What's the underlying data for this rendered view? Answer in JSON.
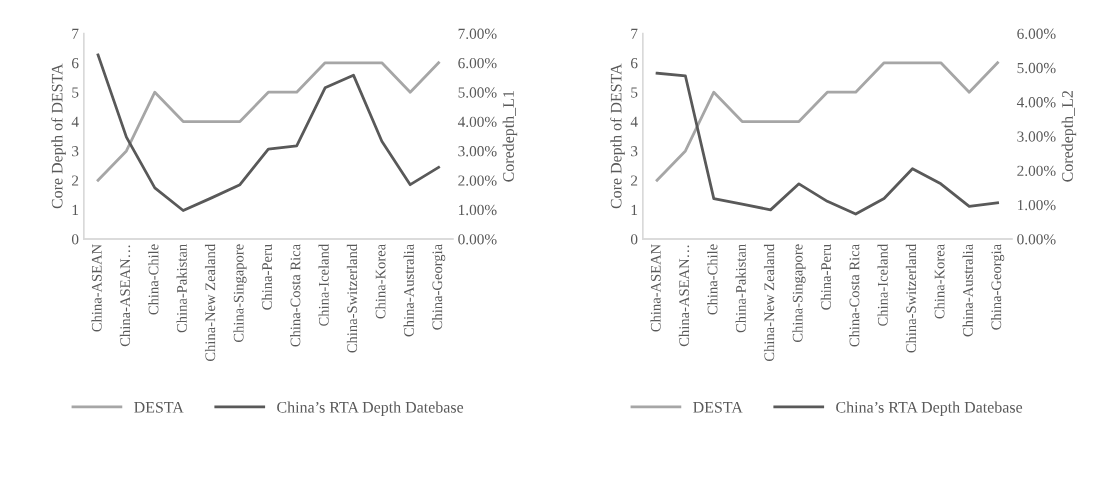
{
  "chart_data": [
    {
      "type": "line",
      "categories": [
        "China-ASEAN",
        "China-ASEAN…",
        "China-Chile",
        "China-Pakistan",
        "China-New Zealand",
        "China-Singapore",
        "China-Peru",
        "China-Costa Rica",
        "China-Iceland",
        "China-Switzerland",
        "China-Korea",
        "China-Australia",
        "China-Georgia"
      ],
      "ylabel": "Core Depth of DESTA",
      "y2label": "Coredepth_L1",
      "ylim": [
        0,
        7
      ],
      "yticks": [
        0,
        1,
        2,
        3,
        4,
        5,
        6,
        7
      ],
      "y2lim": [
        0,
        7
      ],
      "y2ticks": [
        {
          "value": 0,
          "label": "0.00%"
        },
        {
          "value": 1,
          "label": "1.00%"
        },
        {
          "value": 2,
          "label": "2.00%"
        },
        {
          "value": 3,
          "label": "3.00%"
        },
        {
          "value": 4,
          "label": "4.00%"
        },
        {
          "value": 5,
          "label": "5.00%"
        },
        {
          "value": 6,
          "label": "6.00%"
        },
        {
          "value": 7,
          "label": "7.00%"
        }
      ],
      "legend": "bottom",
      "grid": false,
      "series": [
        {
          "name": "DESTA",
          "color": "#a6a6a6",
          "values": [
            2,
            3,
            5,
            4,
            4,
            4,
            5,
            5,
            6,
            6,
            6,
            5,
            6
          ]
        },
        {
          "name": "China’s RTA Depth Datebase",
          "color": "#595959",
          "axis": "y2",
          "values": [
            6.27,
            3.47,
            1.74,
            0.97,
            1.4,
            1.85,
            3.06,
            3.17,
            5.15,
            5.58,
            3.33,
            1.85,
            2.44
          ]
        }
      ]
    },
    {
      "type": "line",
      "categories": [
        "China-ASEAN",
        "China-ASEAN…",
        "China-Chile",
        "China-Pakistan",
        "China-New Zealand",
        "China-Singapore",
        "China-Peru",
        "China-Costa Rica",
        "China-Iceland",
        "China-Switzerland",
        "China-Korea",
        "China-Australia",
        "China-Georgia"
      ],
      "ylabel": "Core Depth of DESTA",
      "y2label": "Coredepth_L2",
      "ylim": [
        0,
        7
      ],
      "yticks": [
        0,
        1,
        2,
        3,
        4,
        5,
        6,
        7
      ],
      "y2lim": [
        0,
        6
      ],
      "y2ticks": [
        {
          "value": 0,
          "label": "0.00%"
        },
        {
          "value": 1,
          "label": "1.00%"
        },
        {
          "value": 2,
          "label": "2.00%"
        },
        {
          "value": 3,
          "label": "3.00%"
        },
        {
          "value": 4,
          "label": "4.00%"
        },
        {
          "value": 5,
          "label": "5.00%"
        },
        {
          "value": 6,
          "label": "6.00%"
        }
      ],
      "legend": "bottom",
      "grid": false,
      "series": [
        {
          "name": "DESTA",
          "color": "#a6a6a6",
          "values": [
            2,
            3,
            5,
            4,
            4,
            4,
            5,
            5,
            6,
            6,
            6,
            5,
            6
          ]
        },
        {
          "name": "China’s RTA Depth Datebase",
          "color": "#595959",
          "axis": "y2",
          "values": [
            4.84,
            4.76,
            1.18,
            1.02,
            0.85,
            1.61,
            1.1,
            0.73,
            1.18,
            2.05,
            1.61,
            0.95,
            1.06
          ]
        }
      ]
    }
  ]
}
